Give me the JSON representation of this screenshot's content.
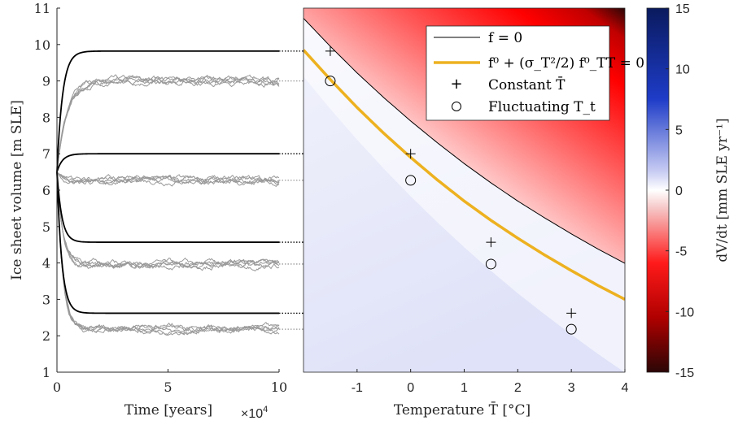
{
  "chart_data": [
    {
      "type": "line",
      "panel": "left",
      "xlabel": "Time [years]",
      "ylabel": "Ice sheet volume [m SLE]",
      "x_exponent_label": "×10",
      "x_exponent_power": "4",
      "xlim": [
        0,
        10
      ],
      "ylim": [
        1,
        11
      ],
      "x_ticks": [
        "0",
        "5",
        "10"
      ],
      "y_ticks": [
        "1",
        "2",
        "3",
        "4",
        "5",
        "6",
        "7",
        "8",
        "9",
        "10",
        "11"
      ],
      "deterministic_color": "#000000",
      "stochastic_color": "#999999",
      "initial_volume": 6.5,
      "deterministic_steady_states": [
        9.82,
        7.0,
        4.57,
        2.62
      ],
      "stochastic_means": [
        9.0,
        6.27,
        3.97,
        2.18
      ]
    },
    {
      "type": "heatmap",
      "panel": "right",
      "xlabel": "Temperature T̄ [°C]",
      "xlim": [
        -2,
        4
      ],
      "ylim": [
        1,
        11
      ],
      "x_ticks": [
        "-1",
        "0",
        "1",
        "2",
        "3",
        "4"
      ],
      "curve_f0": {
        "name": "f = 0",
        "color": "#000000",
        "x": [
          -2,
          -1.5,
          -1,
          -0.5,
          0,
          0.5,
          1,
          1.5,
          2,
          2.5,
          3,
          3.5,
          4
        ],
        "y": [
          10.72,
          9.95,
          9.22,
          8.54,
          7.9,
          7.3,
          6.73,
          6.2,
          5.7,
          5.24,
          4.8,
          4.38,
          3.99
        ]
      },
      "curve_fluct": {
        "name": "f⁰ + (σ_T²/2) f⁰_TT = 0",
        "color": "#EDB120",
        "x": [
          -2,
          -1.5,
          -1,
          -0.5,
          0,
          0.5,
          1,
          1.5,
          2,
          2.5,
          3,
          3.5,
          4
        ],
        "y": [
          9.85,
          9.04,
          8.27,
          7.56,
          6.9,
          6.28,
          5.7,
          5.17,
          4.68,
          4.22,
          3.79,
          3.38,
          3.0
        ]
      },
      "constant_T_points": [
        {
          "x": -1.5,
          "y": 9.82
        },
        {
          "x": 0,
          "y": 7.0
        },
        {
          "x": 1.5,
          "y": 4.57
        },
        {
          "x": 3,
          "y": 2.62
        }
      ],
      "fluctuating_T_points": [
        {
          "x": -1.5,
          "y": 9.0
        },
        {
          "x": 0,
          "y": 6.27
        },
        {
          "x": 1.5,
          "y": 3.97
        },
        {
          "x": 3,
          "y": 2.18
        }
      ],
      "legend": {
        "position": "top-right",
        "entries": [
          "f = 0",
          "f⁰ + (σ_T²/2) f⁰_TT = 0",
          "Constant T̄",
          "Fluctuating T_t"
        ]
      }
    },
    {
      "type": "colorbar",
      "label": "dV/dt [mm SLE yr⁻¹]",
      "range": [
        -15,
        15
      ],
      "ticks": [
        "15",
        "10",
        "5",
        "0",
        "-5",
        "-10",
        "-15"
      ],
      "colors": {
        "high": "#0a1a5e",
        "mid": "#ffffff",
        "low": "#2b0606",
        "red": "#ff0000",
        "blue": "#0000e6"
      }
    }
  ]
}
